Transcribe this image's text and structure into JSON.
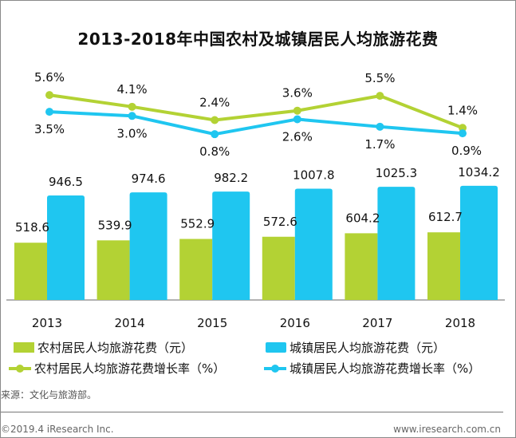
{
  "chart_data": {
    "type": "bar+line",
    "title": "2013-2018年中国农村及城镇居民人均旅游花费",
    "categories": [
      "2013",
      "2014",
      "2015",
      "2016",
      "2017",
      "2018"
    ],
    "bar_series": [
      {
        "name": "农村居民人均旅游花费（元）",
        "color": "#b3d234",
        "values": [
          518.6,
          539.9,
          552.9,
          572.6,
          604.2,
          612.7
        ],
        "labels": [
          "518.6",
          "539.9",
          "552.9",
          "572.6",
          "604.2",
          "612.7"
        ]
      },
      {
        "name": "城镇居民人均旅游花费（元）",
        "color": "#1fc6f0",
        "values": [
          946.5,
          974.6,
          982.2,
          1007.8,
          1025.3,
          1034.2
        ],
        "labels": [
          "946.5",
          "974.6",
          "982.2",
          "1007.8",
          "1025.3",
          "1034.2"
        ]
      }
    ],
    "line_series": [
      {
        "name": "农村居民人均旅游花费增长率（%）",
        "color": "#b3d234",
        "values": [
          5.6,
          4.1,
          2.4,
          3.6,
          5.5,
          1.4
        ],
        "labels": [
          "5.6%",
          "4.1%",
          "2.4%",
          "3.6%",
          "5.5%",
          "1.4%"
        ]
      },
      {
        "name": "城镇居民人均旅游花费增长率（%）",
        "color": "#1fc6f0",
        "values": [
          3.5,
          3.0,
          0.8,
          2.6,
          1.7,
          0.9
        ],
        "labels": [
          "3.5%",
          "3.0%",
          "0.8%",
          "2.6%",
          "1.7%",
          "0.9%"
        ]
      }
    ],
    "legend_position": "bottom",
    "grid": false
  },
  "source": "来源：文化与旅游部。",
  "footer": {
    "copyright": "©2019.4 iResearch Inc.",
    "website": "www.iresearch.com.cn"
  }
}
